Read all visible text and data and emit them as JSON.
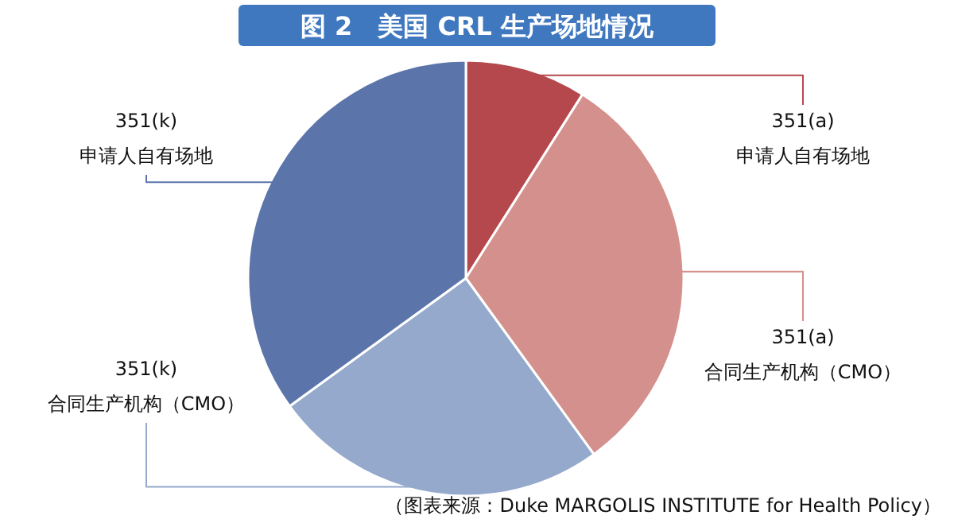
{
  "chart_data": {
    "type": "pie",
    "title": "图 2　美国 CRL 生产场地情况",
    "categories": [
      "351(a)\n申请人自有场地",
      "351(a)\n合同生产机构（CMO）",
      "351(k)\n合同生产机构（CMO）",
      "351(k)\n申请人自有场地"
    ],
    "values": [
      9,
      31,
      25,
      35
    ],
    "colors": [
      "#b5484c",
      "#d4908c",
      "#94a9cb",
      "#5b74aa"
    ],
    "annotations": [
      "（图表来源：Duke MARGOLIS INSTITUTE for Health Policy）"
    ]
  }
}
